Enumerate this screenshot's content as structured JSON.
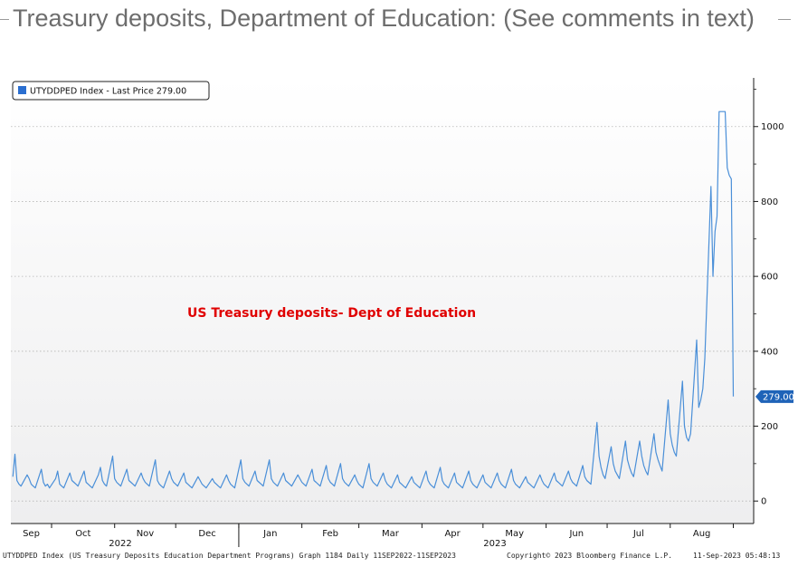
{
  "title": "Treasury deposits, Department of Education: (See comments in text)",
  "annotation": "US Treasury deposits- Dept of Education",
  "legend": "UTYDDPED Index - Last Price 279.00",
  "last_value_label": "279.00",
  "footer": {
    "left": "UTYDDPED Index (US Treasury Deposits Education Department Programs) Graph 1184  Daily 11SEP2022-11SEP2023",
    "center": "Copyright© 2023 Bloomberg Finance L.P.",
    "right": "11-Sep-2023 05:48:13"
  },
  "colors": {
    "series": "#4a8fd8",
    "annotation": "#e00000",
    "last_tag": "#1f63b8"
  },
  "chart_data": {
    "type": "line",
    "series": [
      {
        "name": "UTYDDPED Index - Last Price"
      }
    ],
    "x_range": [
      "2022-09-11",
      "2023-09-11"
    ],
    "x_tick_labels": [
      "Sep",
      "Oct",
      "Nov",
      "Dec",
      "Jan",
      "Feb",
      "Mar",
      "Apr",
      "May",
      "Jun",
      "Jul",
      "Aug"
    ],
    "year_labels": [
      "2022",
      "2023"
    ],
    "y_ticks": [
      0,
      200,
      400,
      600,
      800,
      1000
    ],
    "ylim": [
      -60,
      1130
    ],
    "y_axis_side": "right",
    "grid": "horizontal dotted",
    "legend_position": "top-left",
    "last_value": 279,
    "weekly_values": [
      [
        2022,
        9,
        11,
        [
          65,
          125,
          55,
          45,
          40
        ]
      ],
      [
        2022,
        9,
        18,
        [
          70,
          60,
          45,
          40,
          35
        ]
      ],
      [
        2022,
        9,
        25,
        [
          85,
          50,
          40,
          45,
          35
        ]
      ],
      [
        2022,
        10,
        2,
        [
          60,
          80,
          45,
          40,
          35
        ]
      ],
      [
        2022,
        10,
        9,
        [
          75,
          55,
          50,
          45,
          40
        ]
      ],
      [
        2022,
        10,
        16,
        [
          80,
          50,
          45,
          40,
          35
        ]
      ],
      [
        2022,
        10,
        23,
        [
          70,
          90,
          55,
          45,
          40
        ]
      ],
      [
        2022,
        10,
        30,
        [
          120,
          60,
          50,
          45,
          40
        ]
      ],
      [
        2022,
        11,
        6,
        [
          85,
          55,
          50,
          45,
          40
        ]
      ],
      [
        2022,
        11,
        13,
        [
          75,
          60,
          50,
          45,
          40
        ]
      ],
      [
        2022,
        11,
        20,
        [
          110,
          55,
          45,
          40,
          35
        ]
      ],
      [
        2022,
        11,
        27,
        [
          80,
          60,
          50,
          45,
          40
        ]
      ],
      [
        2022,
        12,
        4,
        [
          75,
          50,
          45,
          40,
          35
        ]
      ],
      [
        2022,
        12,
        11,
        [
          65,
          55,
          45,
          40,
          35
        ]
      ],
      [
        2022,
        12,
        18,
        [
          60,
          50,
          45,
          40,
          35
        ]
      ],
      [
        2022,
        12,
        25,
        [
          70,
          55,
          45,
          40,
          35
        ]
      ],
      [
        2023,
        1,
        1,
        [
          110,
          60,
          50,
          45,
          40
        ]
      ],
      [
        2023,
        1,
        8,
        [
          80,
          55,
          50,
          45,
          40
        ]
      ],
      [
        2023,
        1,
        15,
        [
          110,
          60,
          50,
          45,
          40
        ]
      ],
      [
        2023,
        1,
        22,
        [
          75,
          55,
          50,
          45,
          40
        ]
      ],
      [
        2023,
        1,
        29,
        [
          70,
          60,
          50,
          45,
          40
        ]
      ],
      [
        2023,
        2,
        5,
        [
          85,
          55,
          50,
          45,
          40
        ]
      ],
      [
        2023,
        2,
        12,
        [
          95,
          60,
          50,
          45,
          40
        ]
      ],
      [
        2023,
        2,
        19,
        [
          100,
          60,
          50,
          45,
          40
        ]
      ],
      [
        2023,
        2,
        26,
        [
          70,
          55,
          45,
          40,
          35
        ]
      ],
      [
        2023,
        3,
        5,
        [
          100,
          60,
          50,
          45,
          40
        ]
      ],
      [
        2023,
        3,
        12,
        [
          75,
          55,
          45,
          40,
          35
        ]
      ],
      [
        2023,
        3,
        19,
        [
          70,
          50,
          45,
          40,
          35
        ]
      ],
      [
        2023,
        3,
        26,
        [
          65,
          50,
          45,
          40,
          35
        ]
      ],
      [
        2023,
        4,
        2,
        [
          80,
          55,
          45,
          40,
          35
        ]
      ],
      [
        2023,
        4,
        9,
        [
          90,
          55,
          45,
          40,
          35
        ]
      ],
      [
        2023,
        4,
        16,
        [
          75,
          50,
          45,
          40,
          35
        ]
      ],
      [
        2023,
        4,
        23,
        [
          80,
          55,
          45,
          40,
          35
        ]
      ],
      [
        2023,
        4,
        30,
        [
          70,
          50,
          45,
          40,
          35
        ]
      ],
      [
        2023,
        5,
        7,
        [
          75,
          55,
          45,
          40,
          35
        ]
      ],
      [
        2023,
        5,
        14,
        [
          85,
          55,
          45,
          40,
          35
        ]
      ],
      [
        2023,
        5,
        21,
        [
          65,
          50,
          45,
          40,
          35
        ]
      ],
      [
        2023,
        5,
        28,
        [
          70,
          55,
          45,
          40,
          35
        ]
      ],
      [
        2023,
        6,
        4,
        [
          75,
          55,
          50,
          45,
          40
        ]
      ],
      [
        2023,
        6,
        11,
        [
          80,
          60,
          50,
          45,
          40
        ]
      ],
      [
        2023,
        6,
        18,
        [
          95,
          65,
          55,
          50,
          45
        ]
      ],
      [
        2023,
        6,
        25,
        [
          210,
          120,
          90,
          70,
          60
        ]
      ],
      [
        2023,
        7,
        2,
        [
          145,
          100,
          80,
          70,
          60
        ]
      ],
      [
        2023,
        7,
        9,
        [
          160,
          110,
          90,
          75,
          65
        ]
      ],
      [
        2023,
        7,
        16,
        [
          160,
          120,
          95,
          80,
          70
        ]
      ],
      [
        2023,
        7,
        23,
        [
          180,
          130,
          110,
          95,
          80
        ]
      ],
      [
        2023,
        7,
        30,
        [
          270,
          180,
          150,
          130,
          120
        ]
      ],
      [
        2023,
        8,
        6,
        [
          320,
          200,
          170,
          160,
          180
        ]
      ],
      [
        2023,
        8,
        13,
        [
          430,
          250,
          270,
          300,
          380
        ]
      ],
      [
        2023,
        8,
        20,
        [
          840,
          600,
          720,
          760,
          1040
        ]
      ],
      [
        2023,
        8,
        27,
        [
          1040,
          890,
          870,
          860,
          279
        ]
      ]
    ]
  }
}
